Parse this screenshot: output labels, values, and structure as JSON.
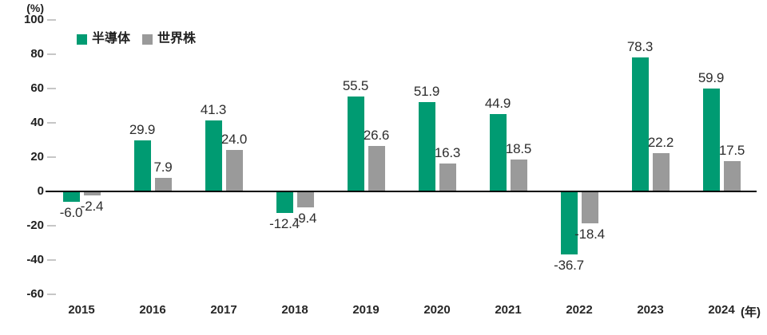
{
  "chart_data": {
    "type": "bar",
    "title": "",
    "y_axis_unit_label": "(%)",
    "x_axis_unit_label": "(年)",
    "categories": [
      "2015",
      "2016",
      "2017",
      "2018",
      "2019",
      "2020",
      "2021",
      "2022",
      "2023",
      "2024"
    ],
    "series": [
      {
        "name": "半導体",
        "slug": "semiconductor",
        "color": "#009b72",
        "values": [
          -6.0,
          29.9,
          41.3,
          -12.4,
          55.5,
          51.9,
          44.9,
          -36.7,
          78.3,
          59.9
        ]
      },
      {
        "name": "世界株",
        "slug": "world-stocks",
        "color": "#9a9a9a",
        "values": [
          -2.4,
          7.9,
          24.0,
          -9.4,
          26.6,
          16.3,
          18.5,
          -18.4,
          22.2,
          17.5
        ]
      }
    ],
    "y_ticks": [
      100,
      80,
      60,
      40,
      20,
      0,
      -20,
      -40,
      -60
    ],
    "ylim": [
      -60,
      100
    ],
    "grid": false,
    "legend_position": "top-left",
    "value_label_decimals": 1
  },
  "colors": {
    "background": "#ffffff",
    "axis_line": "#000000",
    "tick_mark": "#c6c6c6",
    "axis_text": "#1f1f1f",
    "value_text": "#2d2d2d"
  }
}
